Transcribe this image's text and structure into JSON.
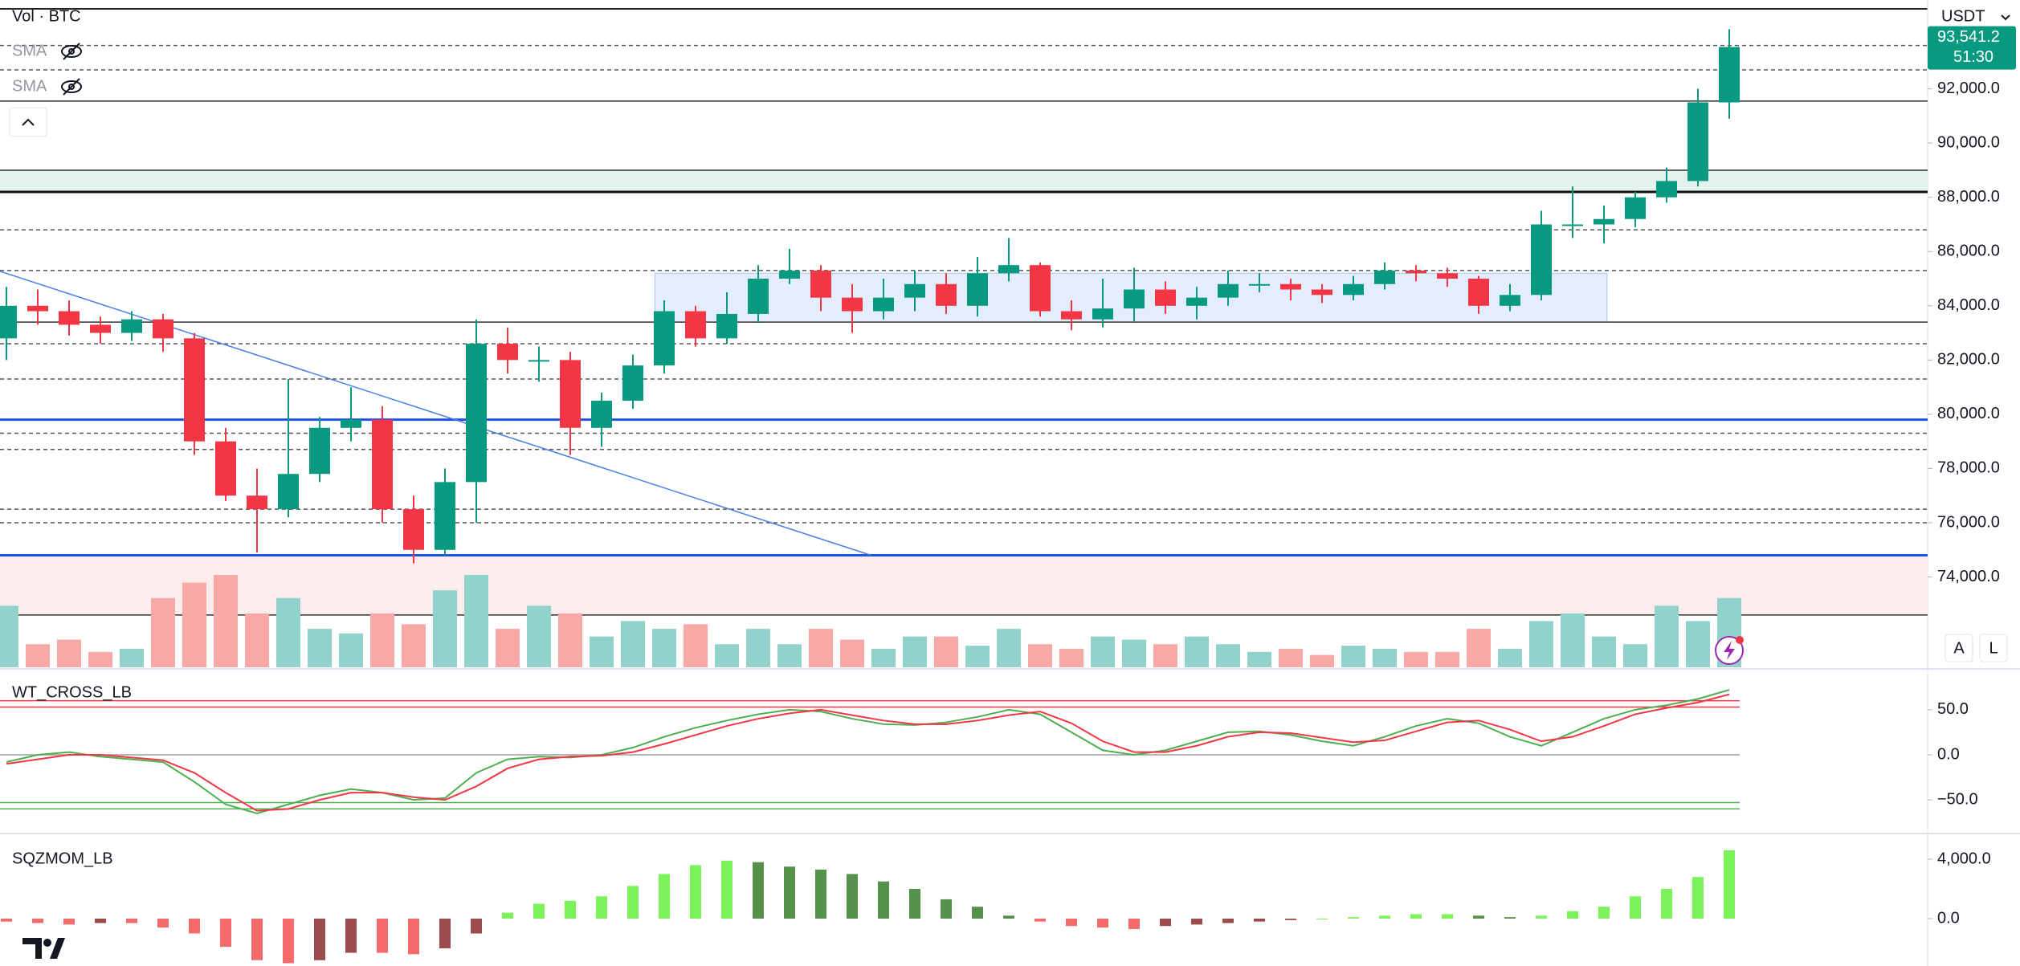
{
  "chart_data": [
    {
      "type": "candlestick",
      "volume_label": "Vol · BTC",
      "overlays": [
        "SMA",
        "SMA"
      ],
      "currency": "USDT",
      "scale_buttons": [
        "A",
        "L"
      ],
      "ylim": [
        70670,
        94950
      ],
      "yticks": [
        {
          "value": 74000,
          "label": "74,000.0"
        },
        {
          "value": 76000,
          "label": "76,000.0"
        },
        {
          "value": 78000,
          "label": "78,000.0"
        },
        {
          "value": 80000,
          "label": "80,000.0"
        },
        {
          "value": 82000,
          "label": "82,000.0"
        },
        {
          "value": 84000,
          "label": "84,000.0"
        },
        {
          "value": 86000,
          "label": "86,000.0"
        },
        {
          "value": 88000,
          "label": "88,000.0"
        },
        {
          "value": 90000,
          "label": "90,000.0"
        },
        {
          "value": 92000,
          "label": "92,000.0"
        }
      ],
      "colors": {
        "up": "#089981",
        "down": "#f23645",
        "volume_up": "#92d2cc",
        "volume_down": "#f7a9a7"
      },
      "open": [
        82800,
        84000,
        83800,
        83300,
        83000,
        83500,
        82800,
        79000,
        77000,
        76500,
        77800,
        79500,
        79800,
        76500,
        75000,
        77500,
        82600,
        82000,
        82000,
        79500,
        80500,
        81800,
        83800,
        82800,
        83700,
        85000,
        85300,
        84300,
        83800,
        84300,
        84800,
        84000,
        85200,
        85500,
        83800,
        83500,
        83900,
        84600,
        84000,
        84300,
        84800,
        84800,
        84600,
        84400,
        84800,
        85300,
        85200,
        85000,
        84000,
        84400,
        87000,
        87000,
        87200,
        88000,
        88600,
        91500
      ],
      "high": [
        84700,
        84600,
        84200,
        83600,
        83800,
        83700,
        83000,
        79500,
        78000,
        81300,
        79900,
        81000,
        80300,
        77000,
        78000,
        83500,
        83200,
        82500,
        82300,
        80800,
        82200,
        84200,
        84000,
        84500,
        85500,
        86100,
        85500,
        84800,
        85000,
        85300,
        85200,
        85800,
        86500,
        85600,
        84200,
        85000,
        85400,
        84900,
        84700,
        85300,
        85200,
        85000,
        84800,
        85100,
        85600,
        85500,
        85400,
        85100,
        84800,
        87500,
        88400,
        87700,
        88200,
        89100,
        92000,
        94200
      ],
      "low": [
        82000,
        83300,
        82900,
        82600,
        82700,
        82300,
        78500,
        76800,
        74900,
        76200,
        77500,
        79000,
        76000,
        74500,
        74800,
        76000,
        81500,
        81200,
        78500,
        78800,
        80200,
        81500,
        82500,
        82600,
        83400,
        84800,
        83800,
        83000,
        83500,
        83800,
        83700,
        83600,
        84900,
        83600,
        83100,
        83200,
        83400,
        83700,
        83500,
        84000,
        84500,
        84200,
        84100,
        84200,
        84600,
        84900,
        84700,
        83700,
        83800,
        84200,
        86500,
        86300,
        86900,
        87800,
        88400,
        90900
      ],
      "close": [
        84000,
        83800,
        83300,
        83000,
        83500,
        82800,
        79000,
        77000,
        76500,
        77800,
        79500,
        79800,
        76500,
        75000,
        77500,
        82600,
        82000,
        82000,
        79500,
        80500,
        81800,
        83800,
        82800,
        83700,
        85000,
        85300,
        84300,
        83800,
        84300,
        84800,
        84000,
        85200,
        85500,
        83800,
        83500,
        83900,
        84600,
        84000,
        84300,
        84800,
        84800,
        84600,
        84400,
        84800,
        85300,
        85200,
        85000,
        84000,
        84400,
        87000,
        87000,
        87200,
        88000,
        88600,
        91500,
        93541.2
      ],
      "volume": [
        40,
        15,
        18,
        10,
        12,
        45,
        55,
        60,
        35,
        45,
        25,
        22,
        35,
        28,
        50,
        60,
        25,
        40,
        35,
        20,
        30,
        25,
        28,
        15,
        25,
        15,
        25,
        18,
        12,
        20,
        20,
        14,
        25,
        15,
        12,
        20,
        18,
        15,
        20,
        15,
        10,
        12,
        8,
        14,
        12,
        10,
        10,
        25,
        12,
        30,
        35,
        20,
        15,
        40,
        30,
        45
      ],
      "levels": [
        {
          "value": 93600,
          "color": "#555555",
          "style": "dashed"
        },
        {
          "value": 92700,
          "color": "#555555",
          "style": "dashed"
        },
        {
          "value": 91550,
          "color": "#333333",
          "style": "solid"
        },
        {
          "value": 89000,
          "color": "#333333",
          "style": "solid"
        },
        {
          "value": 88200,
          "color": "#111111",
          "style": "bold"
        },
        {
          "value": 86800,
          "color": "#555555",
          "style": "dashed"
        },
        {
          "value": 85300,
          "color": "#555555",
          "style": "dashed"
        },
        {
          "value": 83400,
          "color": "#333333",
          "style": "solid"
        },
        {
          "value": 82600,
          "color": "#555555",
          "style": "dashed"
        },
        {
          "value": 81300,
          "color": "#555555",
          "style": "dashed"
        },
        {
          "value": 79800,
          "color": "#1e53e5",
          "style": "bold"
        },
        {
          "value": 79300,
          "color": "#555555",
          "style": "dashed"
        },
        {
          "value": 78700,
          "color": "#555555",
          "style": "dashed"
        },
        {
          "value": 76500,
          "color": "#555555",
          "style": "dashed"
        },
        {
          "value": 76000,
          "color": "#555555",
          "style": "dashed"
        },
        {
          "value": 74800,
          "color": "#1e53e5",
          "style": "bold"
        },
        {
          "value": 72600,
          "color": "#333333",
          "style": "solid"
        }
      ],
      "zones": [
        {
          "from": 88200,
          "to": 89000,
          "color": "#e4f2ef"
        },
        {
          "from": 72600,
          "to": 74800,
          "color": "#fdeeed"
        }
      ],
      "box": {
        "x": [
          20.7,
          51.1
        ],
        "y": [
          83400,
          85200
        ],
        "color": "#dde8fb"
      },
      "trendline": {
        "x": [
          -0.2,
          27.6
        ],
        "y": [
          85270,
          74800
        ],
        "color": "#4a7de8"
      },
      "last_price": {
        "value": 93541.2,
        "label": "93,541.2"
      },
      "countdown": "51:30"
    },
    {
      "type": "line",
      "title": "WT_CROSS_LB",
      "ylim": [
        -85.5,
        93.5
      ],
      "yticks": [
        {
          "value": 50,
          "label": "50.0"
        },
        {
          "value": 0,
          "label": "0.0"
        },
        {
          "value": -50,
          "label": "−50.0"
        }
      ],
      "levels": [
        {
          "value": 60,
          "color": "#f23645"
        },
        {
          "value": 53,
          "color": "#f23645"
        },
        {
          "value": 0,
          "color": "#9e9e9e"
        },
        {
          "value": -53,
          "color": "#4caf50"
        },
        {
          "value": -60,
          "color": "#4caf50"
        }
      ],
      "series": [
        {
          "color": "#4caf50",
          "values": [
            -8,
            0,
            3,
            -2,
            -5,
            -8,
            -30,
            -55,
            -65,
            -55,
            -45,
            -38,
            -42,
            -50,
            -48,
            -20,
            -5,
            -2,
            -3,
            0,
            8,
            20,
            30,
            38,
            45,
            50,
            48,
            40,
            34,
            33,
            36,
            42,
            50,
            45,
            25,
            5,
            0,
            5,
            15,
            25,
            26,
            22,
            15,
            10,
            20,
            32,
            40,
            35,
            20,
            10,
            25,
            40,
            50,
            55,
            62,
            72
          ]
        },
        {
          "color": "#f23645",
          "values": [
            -10,
            -5,
            0,
            0,
            -3,
            -6,
            -20,
            -42,
            -62,
            -60,
            -50,
            -42,
            -42,
            -47,
            -50,
            -35,
            -15,
            -5,
            -2,
            -1,
            3,
            12,
            22,
            32,
            40,
            46,
            50,
            44,
            38,
            34,
            34,
            38,
            44,
            48,
            35,
            15,
            3,
            3,
            10,
            20,
            25,
            24,
            19,
            14,
            16,
            26,
            36,
            38,
            28,
            15,
            20,
            32,
            45,
            52,
            58,
            67
          ]
        }
      ]
    },
    {
      "type": "histogram",
      "title": "SQZMOM_LB",
      "ylim": [
        -3190,
        5620
      ],
      "yticks": [
        {
          "value": 4000,
          "label": "4,000.0"
        },
        {
          "value": 0,
          "label": "0.0"
        }
      ],
      "colors": {
        "rising_up": "#7df35b",
        "falling_up": "#55914a",
        "falling_down": "#f56b6b",
        "rising_down": "#9c4c4c"
      },
      "values": [
        -200,
        -300,
        -400,
        -300,
        -300,
        -600,
        -1000,
        -1900,
        -2800,
        -3000,
        -2800,
        -2300,
        -2300,
        -2400,
        -2000,
        -1000,
        400,
        1000,
        1200,
        1500,
        2200,
        3000,
        3600,
        3900,
        3800,
        3500,
        3300,
        3000,
        2500,
        2000,
        1300,
        800,
        200,
        -200,
        -500,
        -600,
        -700,
        -500,
        -400,
        -300,
        -200,
        -100,
        0,
        100,
        200,
        300,
        300,
        200,
        100,
        200,
        500,
        800,
        1500,
        2000,
        2800,
        4600
      ]
    }
  ]
}
